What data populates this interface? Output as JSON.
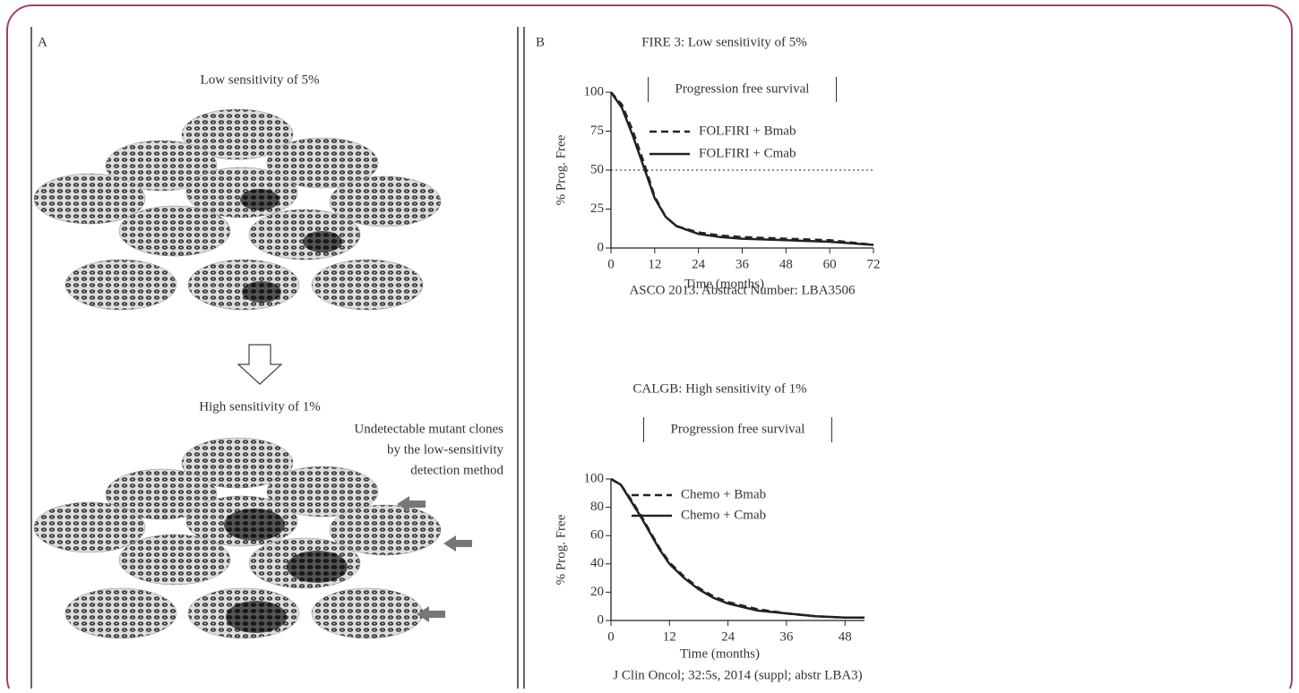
{
  "figure": {
    "panel_a": {
      "label": "A",
      "top_title": "Low sensitivity of 5%",
      "bottom_title": "High sensitivity of 1%",
      "annotation_lines": [
        "Undetectable mutant clones",
        "by the low-sensitivity",
        "detection method"
      ]
    },
    "panel_b": {
      "label": "B"
    }
  },
  "chart_data": [
    {
      "type": "line",
      "title": "FIRE 3: Low sensitivity of 5%",
      "subtitle": "Progression free survival",
      "x_label": "Time (months)",
      "y_label": "% Prog. Free",
      "note": "ASCO 2013. Abstract Number: LBA3506",
      "x": [
        0,
        3,
        6,
        9,
        12,
        15,
        18,
        24,
        30,
        36,
        48,
        60,
        72
      ],
      "series": [
        {
          "name": "FOLFIRI + Bmab",
          "color": "#222222",
          "dash": true,
          "values": [
            100,
            92,
            75,
            55,
            33,
            20,
            14,
            10,
            8,
            7,
            6,
            5,
            2
          ]
        },
        {
          "name": "FOLFIRI + Cmab",
          "color": "#222222",
          "dash": false,
          "values": [
            100,
            90,
            72,
            52,
            32,
            20,
            14,
            9,
            7,
            6,
            5,
            4,
            2
          ]
        }
      ],
      "xlim": [
        0,
        72
      ],
      "ylim": [
        0,
        100
      ],
      "xticks": [
        0,
        12,
        24,
        36,
        48,
        60,
        72
      ],
      "yticks": [
        0,
        25,
        50,
        75,
        100
      ],
      "reference_line": 50
    },
    {
      "type": "line",
      "title": "CALGB: High sensitivity of 1%",
      "subtitle": "Progression free survival",
      "x_label": "Time (months)",
      "y_label": "% Prog. Free",
      "note": "J Clin Oncol; 32:5s, 2014 (suppl; abstr LBA3)",
      "x": [
        0,
        2,
        4,
        6,
        8,
        10,
        12,
        15,
        18,
        21,
        24,
        30,
        36,
        42,
        48,
        52
      ],
      "series": [
        {
          "name": "Chemo + Bmab",
          "color": "#222222",
          "dash": true,
          "values": [
            100,
            96,
            86,
            75,
            63,
            51,
            41,
            31,
            23,
            17,
            13,
            8,
            5,
            3,
            2,
            2
          ]
        },
        {
          "name": "Chemo + Cmab",
          "color": "#222222",
          "dash": false,
          "values": [
            100,
            96,
            85,
            74,
            62,
            50,
            40,
            30,
            22,
            16,
            12,
            7,
            5,
            3,
            2,
            2
          ]
        }
      ],
      "xlim": [
        0,
        52
      ],
      "ylim": [
        0,
        100
      ],
      "xticks": [
        0,
        12,
        24,
        36,
        48
      ],
      "yticks": [
        0,
        20,
        40,
        60,
        80,
        100
      ]
    }
  ]
}
